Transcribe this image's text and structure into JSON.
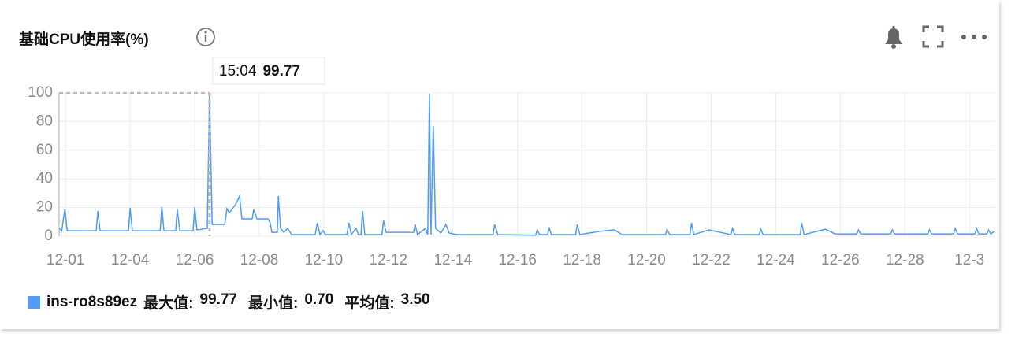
{
  "header": {
    "title": "基础CPU使用率(%)"
  },
  "chart_data": {
    "type": "line",
    "x": [
      0.8,
      0.88,
      0.98,
      1.05,
      1.95,
      2.0,
      2.07,
      2.95,
      3.0,
      3.07,
      3.93,
      3.98,
      4.05,
      4.41,
      4.46,
      4.54,
      4.95,
      5.0,
      5.07,
      5.39,
      5.46,
      5.54,
      5.93,
      6.0,
      6.07,
      6.17,
      6.29,
      6.39,
      6.46,
      6.78,
      6.83,
      6.93,
      7.27,
      7.34,
      7.39,
      7.56,
      7.59,
      7.66,
      7.76,
      7.88,
      8.0,
      8.73,
      8.8,
      8.88,
      8.98,
      9.05,
      9.71,
      9.78,
      9.85,
      10.0,
      10.07,
      10.15,
      10.2,
      10.27,
      10.8,
      10.85,
      10.93,
      11.78,
      11.83,
      11.9,
      12.15,
      12.22,
      12.27,
      12.32,
      12.39,
      12.46,
      12.63,
      12.78,
      12.88,
      13.12,
      14.24,
      14.29,
      14.39,
      15.56,
      15.61,
      15.68,
      15.93,
      15.98,
      16.05,
      16.8,
      16.85,
      16.93,
      17.51,
      18.0,
      18.24,
      19.59,
      19.63,
      19.71,
      20.34,
      20.39,
      20.46,
      20.93,
      21.61,
      21.66,
      21.73,
      22.49,
      22.54,
      22.61,
      23.76,
      23.8,
      23.88,
      24.54,
      24.83,
      25.51,
      25.56,
      25.63,
      26.56,
      26.61,
      26.68,
      27.71,
      27.76,
      27.83,
      28.51,
      28.56,
      28.63,
      29.17,
      29.22,
      29.29,
      29.54,
      29.59,
      29.66,
      29.76
    ],
    "series": [
      {
        "name": "ins-ro8s89ez",
        "color": "#4e9cf5",
        "values": [
          5.5,
          3.8,
          19.2,
          3.8,
          3.8,
          17.6,
          3.8,
          3.8,
          19.8,
          3.8,
          3.8,
          20.3,
          3.8,
          3.8,
          18.7,
          3.8,
          3.8,
          20.3,
          4.4,
          5.5,
          99.77,
          8.2,
          8.2,
          19.2,
          16.5,
          19.2,
          23.1,
          28.0,
          12.1,
          12.1,
          18.7,
          12.1,
          12.1,
          9.3,
          2.7,
          2.7,
          28.0,
          5.5,
          2.7,
          5.5,
          1.1,
          1.1,
          9.3,
          1.1,
          3.8,
          1.1,
          1.1,
          9.3,
          1.1,
          5.5,
          1.1,
          1.1,
          17.6,
          1.1,
          1.1,
          11.0,
          2.7,
          2.7,
          8.2,
          1.1,
          5.5,
          1.1,
          99.5,
          1.1,
          76.9,
          5.5,
          2.2,
          8.2,
          2.2,
          1.1,
          1.1,
          8.2,
          1.1,
          0.7,
          4.4,
          1.1,
          1.1,
          5.5,
          1.1,
          1.1,
          8.2,
          1.1,
          3.3,
          4.4,
          1.1,
          1.1,
          4.9,
          1.1,
          1.1,
          9.3,
          1.1,
          4.4,
          1.1,
          5.5,
          1.1,
          1.1,
          4.9,
          1.1,
          1.1,
          9.3,
          1.1,
          4.9,
          1.6,
          1.6,
          4.4,
          1.6,
          1.6,
          4.4,
          1.6,
          1.6,
          4.4,
          1.6,
          1.6,
          5.5,
          1.6,
          1.6,
          5.5,
          1.6,
          1.6,
          4.4,
          1.6,
          3.3
        ]
      }
    ],
    "xlim": [
      0.8,
      29.8
    ],
    "xticks": [
      {
        "value": 1,
        "label": "12-01"
      },
      {
        "value": 3,
        "label": "12-04"
      },
      {
        "value": 5,
        "label": "12-06"
      },
      {
        "value": 7,
        "label": "12-08"
      },
      {
        "value": 9,
        "label": "12-10"
      },
      {
        "value": 11,
        "label": "12-12"
      },
      {
        "value": 13,
        "label": "12-14"
      },
      {
        "value": 15,
        "label": "12-16"
      },
      {
        "value": 17,
        "label": "12-18"
      },
      {
        "value": 19,
        "label": "12-20"
      },
      {
        "value": 21,
        "label": "12-22"
      },
      {
        "value": 23,
        "label": "12-24"
      },
      {
        "value": 25,
        "label": "12-26"
      },
      {
        "value": 27,
        "label": "12-28"
      },
      {
        "value": 29,
        "label": "12-3"
      }
    ],
    "ylim": [
      0,
      100
    ],
    "yticks": [
      0,
      20,
      40,
      60,
      80,
      100
    ],
    "grid": true,
    "tooltip": {
      "time": "15:04",
      "value": 99.77
    },
    "stats": [
      {
        "label": "最大值:",
        "value": "99.77"
      },
      {
        "label": "最小值:",
        "value": "0.70"
      },
      {
        "label": "平均值:",
        "value": "3.50"
      }
    ]
  }
}
